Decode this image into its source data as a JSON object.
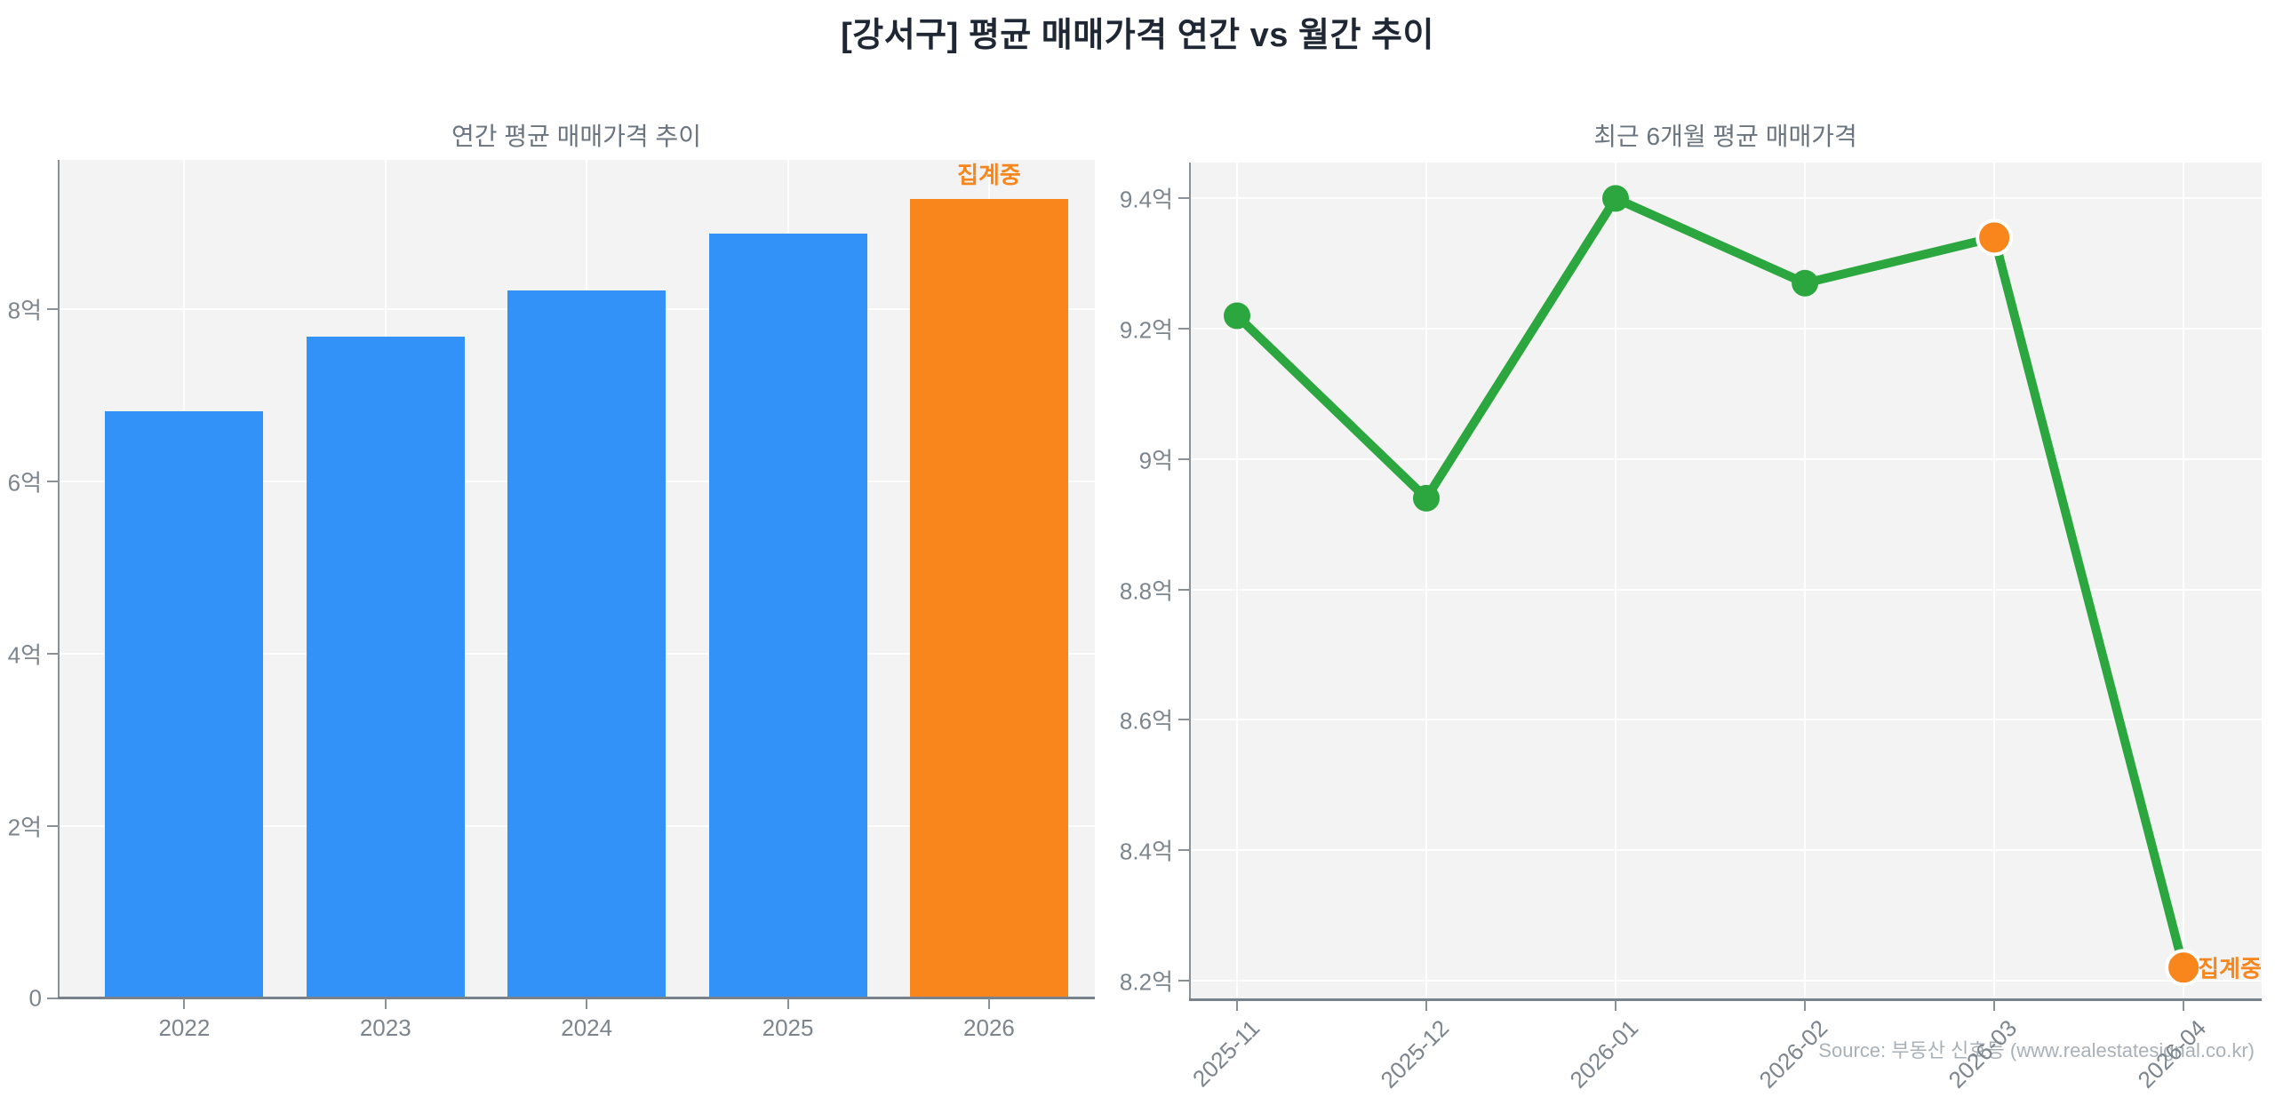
{
  "page": {
    "title": "[강서구] 평균 매매가격 연간 vs 월간 추이",
    "source": "Source: 부동산 신호등 (www.realestatesignal.co.kr)"
  },
  "colors": {
    "bar_blue": "#3292f8",
    "accent_orange": "#f8861d",
    "line_green": "#2ca63e",
    "plot_background": "#f2f3f2",
    "tick_label": "#7c858d",
    "panel_title": "#6b7580",
    "main_title": "#1e2733"
  },
  "chart_data": [
    {
      "type": "bar",
      "title": "연간 평균 매매가격 추이",
      "categories": [
        "2022",
        "2023",
        "2024",
        "2025",
        "2026"
      ],
      "values": [
        6.81,
        7.68,
        8.21,
        8.87,
        9.28
      ],
      "unit": "억",
      "ylim": [
        0,
        9.73
      ],
      "grid": true,
      "yticks": [
        {
          "value": 0,
          "label": "0"
        },
        {
          "value": 2,
          "label": "2억"
        },
        {
          "value": 4,
          "label": "4억"
        },
        {
          "value": 6,
          "label": "6억"
        },
        {
          "value": 8,
          "label": "8억"
        }
      ],
      "bar_colors": [
        "#3292f8",
        "#3292f8",
        "#3292f8",
        "#3292f8",
        "#f8861d"
      ],
      "annotation": {
        "text": "집계중",
        "target_index": 4,
        "color": "#f8861d"
      }
    },
    {
      "type": "line",
      "title": "최근 6개월 평균 매매가격",
      "x": [
        "2025-11",
        "2025-12",
        "2026-01",
        "2026-02",
        "2026-03",
        "2026-04"
      ],
      "values": [
        9.22,
        8.94,
        9.4,
        9.27,
        9.34,
        8.22
      ],
      "unit": "억",
      "ylim": [
        8.17,
        9.455
      ],
      "grid": true,
      "yticks": [
        {
          "value": 8.2,
          "label": "8.2억"
        },
        {
          "value": 8.4,
          "label": "8.4억"
        },
        {
          "value": 8.6,
          "label": "8.6억"
        },
        {
          "value": 8.8,
          "label": "8.8억"
        },
        {
          "value": 9.0,
          "label": "9억"
        },
        {
          "value": 9.2,
          "label": "9.2억"
        },
        {
          "value": 9.4,
          "label": "9.4억"
        }
      ],
      "line_color": "#2ca63e",
      "marker_colors": [
        "#2ca63e",
        "#2ca63e",
        "#2ca63e",
        "#2ca63e",
        "#f8861d",
        "#f8861d"
      ],
      "annotation": {
        "text": "집계중",
        "target_index": 5,
        "color": "#f8861d"
      }
    }
  ]
}
